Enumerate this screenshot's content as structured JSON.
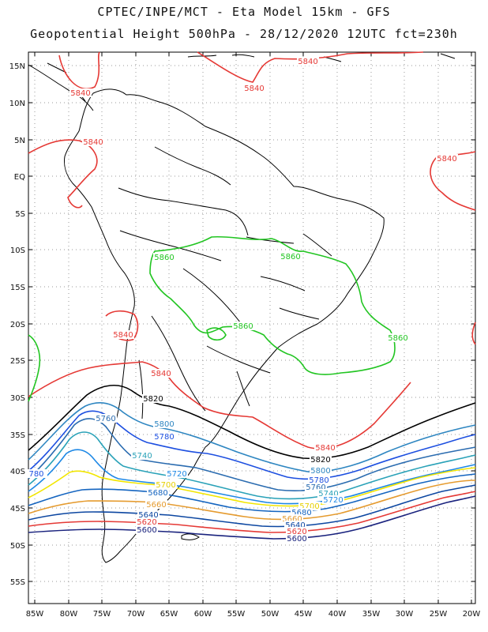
{
  "header": {
    "title_line1": "CPTEC/INPE/MCT - Eta Model 15km - GFS",
    "title_line2": "Geopotential Height 500hPa - 28/12/2020 12UTC fct=230h"
  },
  "map": {
    "lat_labels": [
      "15N",
      "10N",
      "5N",
      "EQ",
      "5S",
      "10S",
      "15S",
      "20S",
      "25S",
      "30S",
      "35S",
      "40S",
      "45S",
      "50S",
      "55S"
    ],
    "lon_labels": [
      "85W",
      "80W",
      "75W",
      "70W",
      "65W",
      "60W",
      "55W",
      "50W",
      "45W",
      "40W",
      "35W",
      "30W",
      "25W",
      "20W"
    ],
    "grid": "dotted",
    "contour_colors": {
      "5600": "#1a237e",
      "5620": "#e53935",
      "5640": "#0d47a1",
      "5660": "#e59b2f",
      "5680": "#1565c0",
      "5700": "#f2e600",
      "5720": "#1e88e5",
      "5740": "#2aa2b8",
      "5760": "#2b6cb0",
      "5780": "#1d4fe0",
      "5800": "#2e86c1",
      "5820": "#000000",
      "5840": "#e53935",
      "5860": "#22c522"
    },
    "contour_labels": [
      {
        "text": "5840",
        "color": "#e53935"
      },
      {
        "text": "5840",
        "color": "#e53935"
      },
      {
        "text": "5840",
        "color": "#e53935"
      },
      {
        "text": "5840",
        "color": "#e53935"
      },
      {
        "text": "5840",
        "color": "#e53935"
      },
      {
        "text": "5840",
        "color": "#e53935"
      },
      {
        "text": "5840",
        "color": "#e53935"
      },
      {
        "text": "5840",
        "color": "#e53935"
      },
      {
        "text": "5860",
        "color": "#22c522"
      },
      {
        "text": "5860",
        "color": "#22c522"
      },
      {
        "text": "5860",
        "color": "#22c522"
      },
      {
        "text": "5860",
        "color": "#22c522"
      },
      {
        "text": "5820",
        "color": "#000000"
      },
      {
        "text": "5820",
        "color": "#000000"
      },
      {
        "text": "5760",
        "color": "#2b6cb0"
      },
      {
        "text": "5800",
        "color": "#2e86c1"
      },
      {
        "text": "5780",
        "color": "#1d4fe0"
      },
      {
        "text": "5740",
        "color": "#2aa2b8"
      },
      {
        "text": "5720",
        "color": "#1e88e5"
      },
      {
        "text": "5700",
        "color": "#e5cf00"
      },
      {
        "text": "5680",
        "color": "#1565c0"
      },
      {
        "text": "5660",
        "color": "#e59b2f"
      },
      {
        "text": "5640",
        "color": "#0d47a1"
      },
      {
        "text": "5620",
        "color": "#e53935"
      },
      {
        "text": "5600",
        "color": "#1a237e"
      },
      {
        "text": "780",
        "color": "#1d4fe0"
      },
      {
        "text": "5800",
        "color": "#2e86c1"
      },
      {
        "text": "5780",
        "color": "#1d4fe0"
      },
      {
        "text": "5760",
        "color": "#2b6cb0"
      },
      {
        "text": "5740",
        "color": "#2aa2b8"
      },
      {
        "text": "5720",
        "color": "#1e88e5"
      },
      {
        "text": "5700",
        "color": "#e5cf00"
      },
      {
        "text": "5680",
        "color": "#1565c0"
      },
      {
        "text": "5660",
        "color": "#e59b2f"
      },
      {
        "text": "5640",
        "color": "#0d47a1"
      },
      {
        "text": "5620",
        "color": "#e53935"
      },
      {
        "text": "5600",
        "color": "#1a237e"
      }
    ]
  }
}
